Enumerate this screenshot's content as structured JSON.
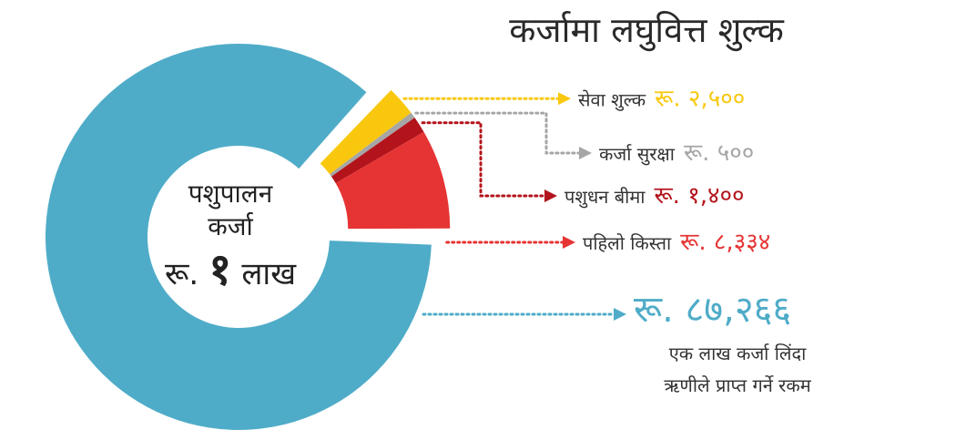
{
  "title": "कर्जामा लघुवित्त शुल्क",
  "center_label": {
    "line1": "पशुपालन",
    "line2": "कर्जा",
    "amount_prefix": "रू.",
    "amount_number": "१",
    "amount_suffix": "लाख"
  },
  "received_caption": {
    "line1": "एक लाख कर्जा लिंदा",
    "line2": "ऋणीले प्राप्त गर्ने रकम"
  },
  "colors": {
    "received": "#4facc8",
    "service_fee": "#f9c80e",
    "security": "#a6a6a6",
    "insurance": "#b3141c",
    "installment": "#e63434"
  },
  "chart_data": {
    "type": "pie",
    "donut": true,
    "title": "कर्जामा लघुवित्त शुल्क",
    "total": 100000,
    "slices": [
      {
        "key": "service_fee",
        "name": "सेवा शुल्क",
        "value": 2500,
        "value_label": "रू. २,५००"
      },
      {
        "key": "security",
        "name": "कर्जा सुरक्षा",
        "value": 500,
        "value_label": "रू. ५००"
      },
      {
        "key": "insurance",
        "name": "पशुधन बीमा",
        "value": 1400,
        "value_label": "रू. १,४००"
      },
      {
        "key": "installment",
        "name": "पहिलो किस्ता",
        "value": 8334,
        "value_label": "रू. ८,३३४"
      },
      {
        "key": "received",
        "name": "",
        "value": 87266,
        "value_label": "रू. ८७,२६६"
      }
    ]
  }
}
